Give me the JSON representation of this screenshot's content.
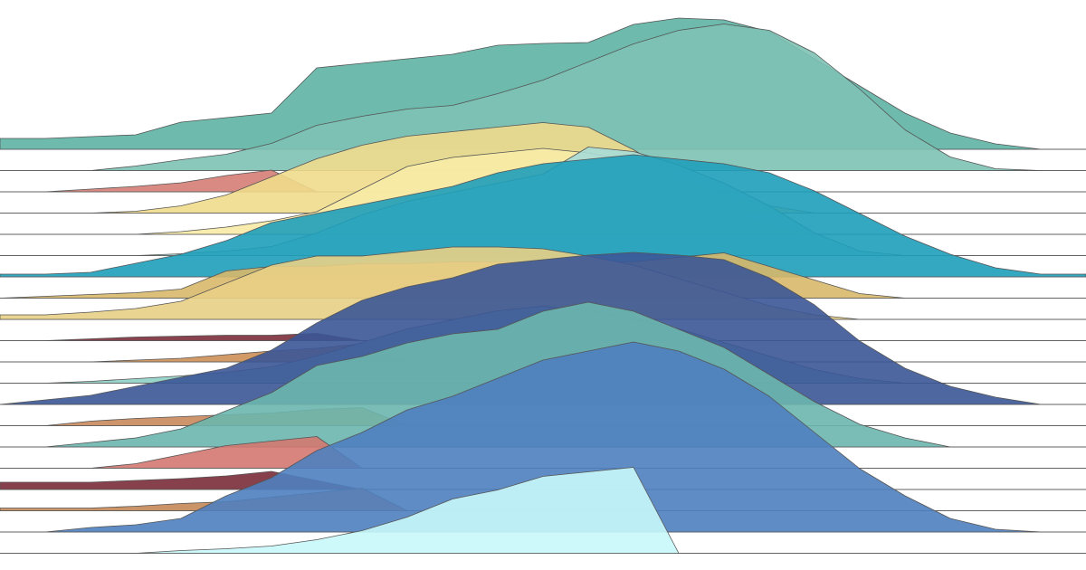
{
  "chart_data": {
    "type": "ridgeline",
    "x": [
      0,
      1,
      2,
      3,
      4,
      5,
      6,
      7,
      8,
      9,
      10,
      11,
      12,
      13,
      14,
      15,
      16,
      17,
      18,
      19,
      20,
      21,
      22,
      23,
      24
    ],
    "xlim": [
      0,
      24
    ],
    "ylim": [
      0,
      200
    ],
    "series": [
      {
        "color": "#5eb2a4",
        "values": [
          12,
          12,
          14,
          16,
          30,
          35,
          40,
          90,
          95,
          100,
          105,
          115,
          117,
          118,
          138,
          145,
          143,
          130,
          100,
          70,
          40,
          18,
          6,
          0,
          0
        ]
      },
      {
        "color": "#7dc2b5",
        "values": [
          0,
          0,
          0,
          5,
          12,
          18,
          30,
          50,
          60,
          68,
          72,
          85,
          100,
          120,
          140,
          155,
          162,
          155,
          130,
          90,
          45,
          15,
          2,
          0,
          0
        ]
      },
      {
        "color": "#d57e76",
        "values": [
          0,
          0,
          3,
          6,
          10,
          18,
          24,
          0,
          0,
          0,
          0,
          0,
          0,
          0,
          0,
          0,
          0,
          0,
          0,
          0,
          0,
          0,
          0,
          0,
          0
        ]
      },
      {
        "color": "#f0da8c",
        "values": [
          0,
          0,
          0,
          2,
          8,
          20,
          40,
          60,
          75,
          85,
          90,
          95,
          100,
          95,
          70,
          40,
          20,
          8,
          0,
          0,
          0,
          0,
          0,
          0,
          0
        ]
      },
      {
        "color": "#f7eba6",
        "values": [
          0,
          0,
          0,
          0,
          3,
          8,
          15,
          25,
          50,
          75,
          85,
          90,
          95,
          90,
          80,
          55,
          30,
          10,
          0,
          0,
          0,
          0,
          0,
          0,
          0
        ]
      },
      {
        "color": "#a9dcd8",
        "values": [
          0,
          0,
          0,
          0,
          2,
          5,
          10,
          25,
          45,
          60,
          70,
          80,
          90,
          120,
          115,
          100,
          80,
          55,
          25,
          5,
          0,
          0,
          0,
          0,
          0
        ]
      },
      {
        "color": "#1f9fba",
        "values": [
          3,
          3,
          5,
          15,
          25,
          40,
          60,
          70,
          80,
          90,
          100,
          115,
          125,
          130,
          135,
          130,
          125,
          115,
          95,
          70,
          45,
          25,
          10,
          3,
          3
        ]
      },
      {
        "color": "#d8b86a",
        "values": [
          0,
          2,
          4,
          6,
          10,
          30,
          35,
          35,
          38,
          38,
          40,
          40,
          40,
          40,
          40,
          45,
          50,
          35,
          20,
          5,
          0,
          0,
          0,
          0,
          0
        ]
      },
      {
        "color": "#e8cf85",
        "values": [
          5,
          5,
          8,
          12,
          20,
          40,
          60,
          70,
          70,
          75,
          80,
          80,
          78,
          70,
          60,
          45,
          30,
          15,
          5,
          0,
          0,
          0,
          0,
          0,
          0
        ]
      },
      {
        "color": "#7b2f3b",
        "values": [
          0,
          0,
          2,
          4,
          5,
          6,
          6,
          8,
          0,
          0,
          0,
          0,
          0,
          0,
          0,
          0,
          0,
          0,
          0,
          0,
          0,
          0,
          0,
          0,
          0
        ]
      },
      {
        "color": "#cc8f57",
        "values": [
          0,
          0,
          0,
          2,
          4,
          8,
          12,
          15,
          20,
          0,
          0,
          0,
          0,
          0,
          0,
          0,
          0,
          0,
          0,
          0,
          0,
          0,
          0,
          0,
          0
        ]
      },
      {
        "color": "#8fd0c6",
        "values": [
          0,
          0,
          2,
          5,
          8,
          12,
          18,
          30,
          45,
          60,
          70,
          80,
          85,
          80,
          70,
          60,
          45,
          30,
          15,
          5,
          0,
          0,
          0,
          0,
          0
        ]
      },
      {
        "color": "#3b5797",
        "values": [
          0,
          5,
          10,
          20,
          30,
          40,
          60,
          90,
          115,
          130,
          140,
          155,
          160,
          165,
          168,
          165,
          160,
          140,
          110,
          70,
          40,
          20,
          8,
          0,
          0
        ]
      },
      {
        "color": "#c98a5c",
        "values": [
          0,
          0,
          5,
          8,
          10,
          12,
          14,
          18,
          20,
          0,
          0,
          0,
          0,
          0,
          0,
          0,
          0,
          0,
          0,
          0,
          0,
          0,
          0,
          0,
          0
        ]
      },
      {
        "color": "#6cb6ae",
        "values": [
          0,
          0,
          5,
          10,
          20,
          40,
          60,
          90,
          100,
          115,
          125,
          130,
          150,
          160,
          150,
          130,
          110,
          80,
          50,
          25,
          10,
          0,
          0,
          0,
          0
        ]
      },
      {
        "color": "#d37870",
        "values": [
          0,
          0,
          0,
          5,
          15,
          25,
          30,
          35,
          0,
          0,
          0,
          0,
          0,
          0,
          0,
          0,
          0,
          0,
          0,
          0,
          0,
          0,
          0,
          0,
          0
        ]
      },
      {
        "color": "#7a2c38",
        "values": [
          8,
          8,
          8,
          10,
          12,
          15,
          20,
          10,
          0,
          0,
          0,
          0,
          0,
          0,
          0,
          0,
          0,
          0,
          0,
          0,
          0,
          0,
          0,
          0,
          0
        ]
      },
      {
        "color": "#c48758",
        "values": [
          3,
          3,
          3,
          5,
          8,
          10,
          15,
          20,
          25,
          0,
          0,
          0,
          0,
          0,
          0,
          0,
          0,
          0,
          0,
          0,
          0,
          0,
          0,
          0,
          0
        ]
      },
      {
        "color": "#4f7fbf",
        "values": [
          0,
          0,
          5,
          8,
          15,
          40,
          60,
          90,
          110,
          135,
          150,
          170,
          190,
          200,
          210,
          200,
          180,
          150,
          110,
          70,
          40,
          15,
          3,
          0,
          0
        ]
      },
      {
        "color": "#c8f8fa",
        "values": [
          0,
          0,
          0,
          0,
          3,
          5,
          8,
          15,
          25,
          40,
          60,
          70,
          85,
          90,
          95,
          0,
          0,
          0,
          0,
          0,
          0,
          0,
          0,
          0,
          0
        ]
      }
    ]
  }
}
